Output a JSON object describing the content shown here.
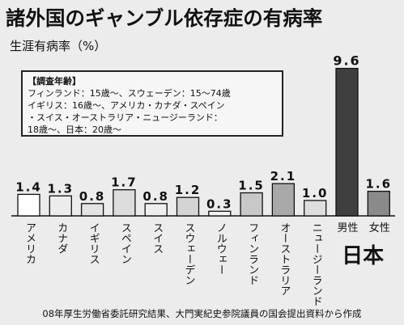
{
  "chart_data": {
    "type": "bar",
    "title": "諸外国のギャンブル依存症の有病率",
    "ylabel": "生涯有病率（%）",
    "xlabel": "",
    "ylim": [
      0,
      10
    ],
    "grid": false,
    "categories": [
      "アメリカ",
      "カナダ",
      "イギリス",
      "スペイン",
      "スイス",
      "スウェーデン",
      "ノルウェー",
      "フィンランド",
      "オーストラリア",
      "ニュージーランド",
      "男性",
      "女性"
    ],
    "values": [
      1.4,
      1.3,
      0.8,
      1.7,
      0.8,
      1.2,
      0.3,
      1.5,
      2.1,
      1.0,
      9.6,
      1.6
    ],
    "value_labels": [
      "1.4",
      "1.3",
      "0.8",
      "1.7",
      "0.8",
      "1.2",
      "0.3",
      "1.5",
      "2.1",
      "1.0",
      "9.6",
      "1.6"
    ],
    "bar_fills": [
      "#ffffff",
      "#ececec",
      "#e4e4e4",
      "#dcdcdc",
      "#eeeeee",
      "#d4d4d4",
      "#f2f2f2",
      "#c8c8c8",
      "#a9a9a9",
      "#dedede",
      "#3f3f3f",
      "#8a8a8a"
    ],
    "group_label": "日本"
  },
  "note": {
    "heading": "【調査年齢】",
    "lines": [
      "フィンランド：15歳〜、スウェーデン：15〜74歳",
      "イギリス：16歳〜、アメリカ・カナダ・スペイン",
      "・スイス・オーストラリア・ニュージーランド：",
      "18歳〜、日本：20歳〜"
    ]
  },
  "source": "08年厚生労働省委託研究結果、大門実紀史参院議員の国会提出資料から作成"
}
